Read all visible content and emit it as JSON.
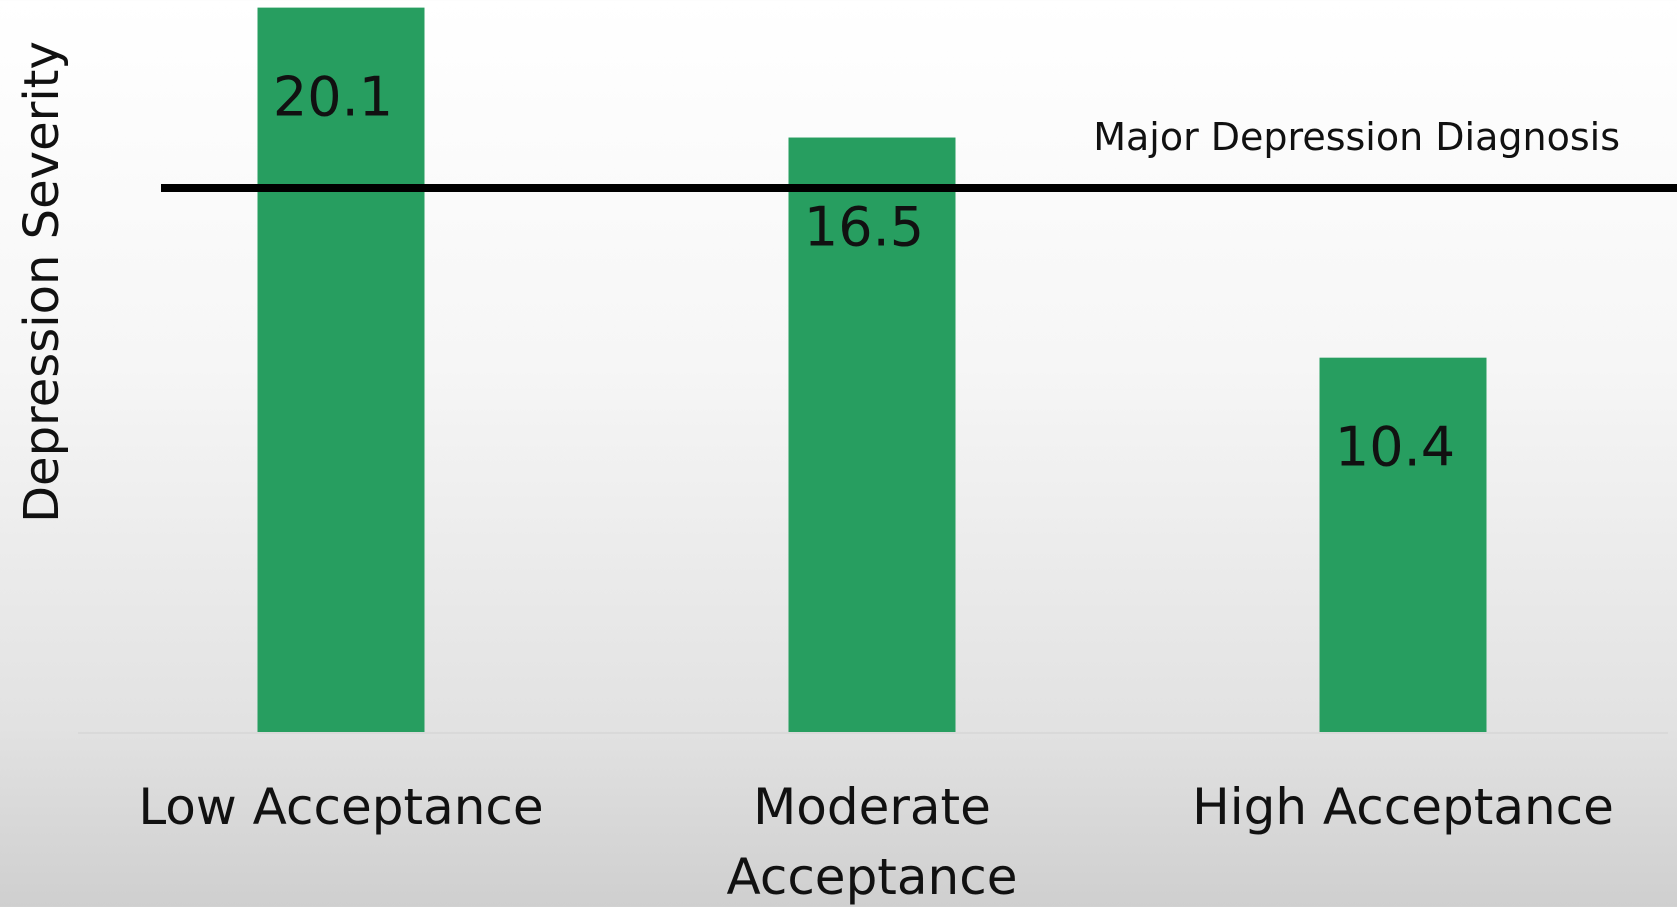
{
  "chart_data": {
    "type": "bar",
    "categories": [
      "Low Acceptance",
      "Moderate Acceptance",
      "High Acceptance"
    ],
    "category_lines": [
      [
        "Low Acceptance"
      ],
      [
        "Moderate",
        "Acceptance"
      ],
      [
        "High Acceptance"
      ]
    ],
    "values": [
      20.1,
      16.5,
      10.4
    ],
    "value_labels": [
      "20.1",
      "16.5",
      "10.4"
    ],
    "ylabel": "Depression Severity",
    "xlabel": "",
    "ylim": [
      0,
      20.2
    ],
    "grid": false,
    "reference_line": {
      "value": 15.1,
      "label": "Major Depression Diagnosis"
    },
    "bar_color": "#279e60",
    "reference_line_color": "#000000",
    "baseline_color": "#d9d9d9"
  }
}
